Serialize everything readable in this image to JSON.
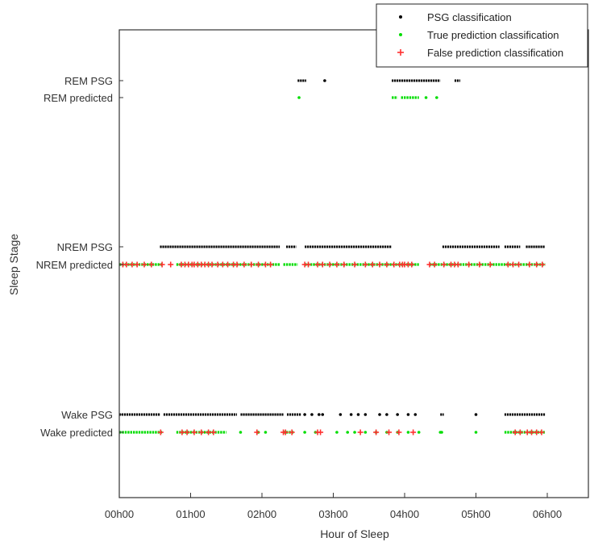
{
  "chart_data": {
    "type": "scatter",
    "title": "",
    "xlabel": "Hour of Sleep",
    "ylabel": "Sleep Stage",
    "xlim": [
      0,
      6.6
    ],
    "x_ticks": [
      0,
      1,
      2,
      3,
      4,
      5,
      6
    ],
    "x_tick_labels": [
      "00h00",
      "01h00",
      "02h00",
      "03h00",
      "04h00",
      "05h00",
      "06h00"
    ],
    "y_levels": [
      {
        "key": "rem_psg",
        "label": "REM PSG"
      },
      {
        "key": "rem_pred",
        "label": "REM predicted"
      },
      {
        "key": "nrem_psg",
        "label": "NREM PSG"
      },
      {
        "key": "nrem_pred",
        "label": "NREM predicted"
      },
      {
        "key": "wake_psg",
        "label": "Wake PSG"
      },
      {
        "key": "wake_pred",
        "label": "Wake predicted"
      }
    ],
    "legend": {
      "position": "top-right",
      "entries": [
        {
          "series": "psg",
          "label": "PSG classification",
          "color": "#000000",
          "marker": "dot"
        },
        {
          "series": "true_pred",
          "label": "True prediction classification",
          "color": "#00dd00",
          "marker": "dot"
        },
        {
          "series": "false_pred",
          "label": "False prediction classification",
          "color": "#ff3030",
          "marker": "plus"
        }
      ]
    },
    "grid": false,
    "segments": [
      {
        "series": "psg",
        "level": "rem_psg",
        "ranges": [
          [
            2.5,
            2.62
          ],
          [
            3.82,
            4.5
          ],
          [
            4.7,
            4.78
          ]
        ]
      },
      {
        "series": "psg",
        "level": "nrem_psg",
        "ranges": [
          [
            0.57,
            2.25
          ],
          [
            2.34,
            2.48
          ],
          [
            2.6,
            3.82
          ],
          [
            4.53,
            5.33
          ],
          [
            5.4,
            5.62
          ],
          [
            5.7,
            5.97
          ]
        ]
      },
      {
        "series": "psg",
        "level": "wake_psg",
        "ranges": [
          [
            0,
            0.57
          ],
          [
            0.62,
            1.65
          ],
          [
            1.7,
            2.3
          ],
          [
            2.35,
            2.55
          ],
          [
            4.5,
            4.55
          ],
          [
            5.4,
            5.97
          ]
        ]
      },
      {
        "series": "true_pred",
        "level": "nrem_pred",
        "ranges": [
          [
            0,
            0.6
          ],
          [
            0.8,
            2.25
          ],
          [
            2.3,
            2.5
          ],
          [
            2.6,
            4.2
          ],
          [
            4.35,
            5.97
          ]
        ]
      },
      {
        "series": "true_pred",
        "level": "wake_pred",
        "ranges": [
          [
            0,
            0.6
          ],
          [
            0.8,
            1.5
          ],
          [
            2.3,
            2.45
          ],
          [
            5.4,
            5.97
          ]
        ]
      },
      {
        "series": "true_pred",
        "level": "rem_pred",
        "ranges": [
          [
            3.82,
            3.9
          ],
          [
            3.95,
            4.2
          ]
        ]
      }
    ],
    "points": [
      {
        "series": "psg",
        "level": "rem_psg",
        "x": [
          2.88
        ]
      },
      {
        "series": "psg",
        "level": "wake_psg",
        "x": [
          2.6,
          2.7,
          2.8,
          2.85,
          3.1,
          3.25,
          3.35,
          3.45,
          3.65,
          3.75,
          3.9,
          4.05,
          4.15,
          5.0
        ]
      },
      {
        "series": "true_pred",
        "level": "rem_pred",
        "x": [
          2.52,
          4.3,
          4.45
        ]
      },
      {
        "series": "true_pred",
        "level": "wake_pred",
        "x": [
          1.7,
          1.95,
          2.05,
          2.6,
          2.75,
          3.05,
          3.2,
          3.3,
          3.45,
          3.6,
          3.75,
          3.9,
          4.05,
          4.2,
          4.5,
          4.52,
          5.0
        ]
      },
      {
        "series": "false_pred",
        "level": "nrem_pred",
        "x": [
          0.05,
          0.1,
          0.18,
          0.25,
          0.35,
          0.45,
          0.6,
          0.72,
          0.87,
          0.92,
          0.97,
          1.02,
          1.05,
          1.1,
          1.15,
          1.2,
          1.25,
          1.3,
          1.38,
          1.45,
          1.52,
          1.6,
          1.65,
          1.75,
          1.85,
          1.95,
          2.05,
          2.12,
          2.6,
          2.65,
          2.78,
          2.85,
          2.95,
          3.05,
          3.15,
          3.3,
          3.45,
          3.55,
          3.65,
          3.75,
          3.85,
          3.93,
          3.97,
          4.0,
          4.05,
          4.1,
          4.35,
          4.42,
          4.55,
          4.65,
          4.7,
          4.75,
          4.9,
          5.05,
          5.2,
          5.45,
          5.52,
          5.6,
          5.75,
          5.85,
          5.93
        ]
      },
      {
        "series": "false_pred",
        "level": "wake_pred",
        "x": [
          0.58,
          0.88,
          0.95,
          1.05,
          1.15,
          1.25,
          1.32,
          1.93,
          2.3,
          2.33,
          2.42,
          2.78,
          2.82,
          3.38,
          3.6,
          3.78,
          3.92,
          4.12,
          5.55,
          5.62,
          5.72,
          5.78,
          5.85,
          5.92
        ]
      }
    ]
  }
}
